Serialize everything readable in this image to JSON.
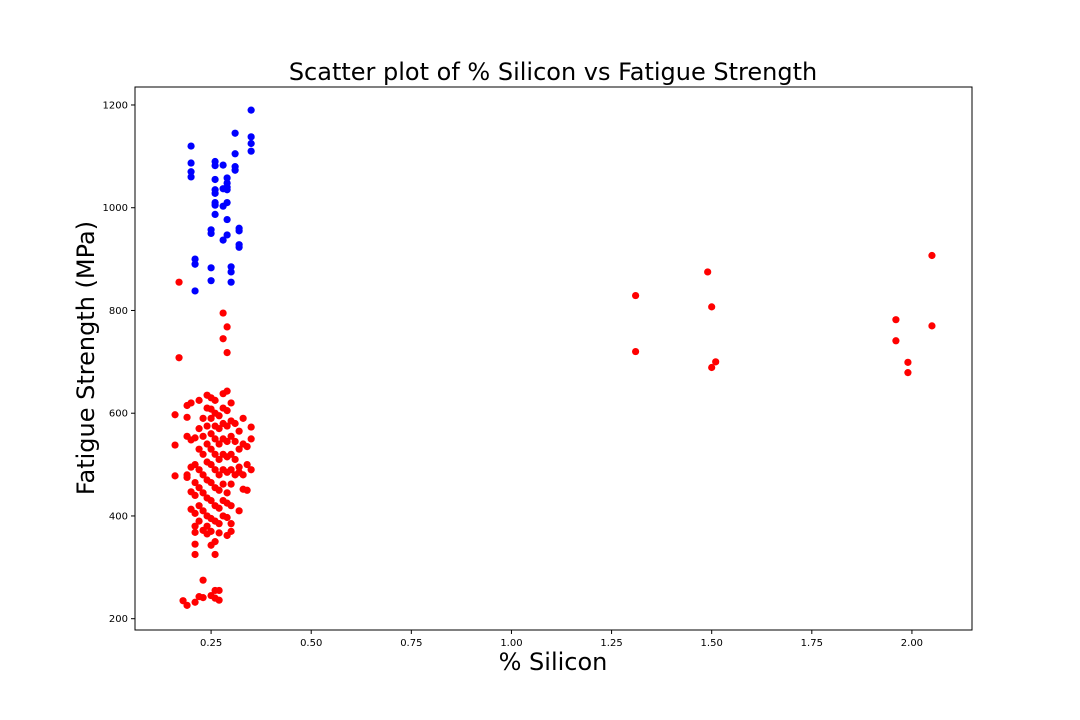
{
  "chart_data": {
    "type": "scatter",
    "title": "Scatter plot of % Silicon vs Fatigue Strength",
    "xlabel": "% Silicon",
    "ylabel": "Fatigue Strength (MPa)",
    "xlim": [
      0.06,
      2.15
    ],
    "ylim": [
      178,
      1235
    ],
    "xticks": [
      0.25,
      0.5,
      0.75,
      1.0,
      1.25,
      1.5,
      1.75,
      2.0
    ],
    "xtick_labels": [
      "0.25",
      "0.50",
      "0.75",
      "1.00",
      "1.25",
      "1.50",
      "1.75",
      "2.00"
    ],
    "yticks": [
      200,
      400,
      600,
      800,
      1000,
      1200
    ],
    "ytick_labels": [
      "200",
      "400",
      "600",
      "800",
      "1000",
      "1200"
    ],
    "grid": false,
    "colors": {
      "high": "#0000ff",
      "low": "#ff0000"
    },
    "series": [
      {
        "color": "#0000ff",
        "points": [
          [
            0.2,
            1120
          ],
          [
            0.2,
            1087
          ],
          [
            0.2,
            1070
          ],
          [
            0.2,
            1060
          ],
          [
            0.21,
            900
          ],
          [
            0.21,
            890
          ],
          [
            0.21,
            838
          ],
          [
            0.25,
            957
          ],
          [
            0.25,
            950
          ],
          [
            0.25,
            883
          ],
          [
            0.25,
            858
          ],
          [
            0.26,
            1090
          ],
          [
            0.26,
            1082
          ],
          [
            0.26,
            1055
          ],
          [
            0.26,
            1035
          ],
          [
            0.26,
            1028
          ],
          [
            0.26,
            1010
          ],
          [
            0.26,
            1005
          ],
          [
            0.26,
            987
          ],
          [
            0.28,
            1083
          ],
          [
            0.28,
            1037
          ],
          [
            0.28,
            1003
          ],
          [
            0.28,
            937
          ],
          [
            0.29,
            1058
          ],
          [
            0.29,
            1048
          ],
          [
            0.29,
            1040
          ],
          [
            0.29,
            1035
          ],
          [
            0.29,
            1010
          ],
          [
            0.29,
            977
          ],
          [
            0.29,
            947
          ],
          [
            0.3,
            885
          ],
          [
            0.3,
            875
          ],
          [
            0.3,
            855
          ],
          [
            0.31,
            1145
          ],
          [
            0.31,
            1105
          ],
          [
            0.31,
            1080
          ],
          [
            0.31,
            1073
          ],
          [
            0.32,
            960
          ],
          [
            0.32,
            955
          ],
          [
            0.32,
            928
          ],
          [
            0.32,
            923
          ],
          [
            0.35,
            1190
          ],
          [
            0.35,
            1138
          ],
          [
            0.35,
            1125
          ],
          [
            0.35,
            1110
          ]
        ]
      },
      {
        "color": "#ff0000",
        "points": [
          [
            0.17,
            855
          ],
          [
            0.17,
            708
          ],
          [
            0.16,
            597
          ],
          [
            0.16,
            538
          ],
          [
            0.16,
            478
          ],
          [
            0.18,
            235
          ],
          [
            0.19,
            226
          ],
          [
            0.19,
            615
          ],
          [
            0.19,
            592
          ],
          [
            0.19,
            555
          ],
          [
            0.19,
            480
          ],
          [
            0.19,
            475
          ],
          [
            0.2,
            620
          ],
          [
            0.2,
            548
          ],
          [
            0.2,
            495
          ],
          [
            0.2,
            447
          ],
          [
            0.2,
            413
          ],
          [
            0.21,
            552
          ],
          [
            0.21,
            500
          ],
          [
            0.21,
            465
          ],
          [
            0.21,
            440
          ],
          [
            0.21,
            405
          ],
          [
            0.21,
            380
          ],
          [
            0.21,
            368
          ],
          [
            0.21,
            345
          ],
          [
            0.21,
            325
          ],
          [
            0.21,
            232
          ],
          [
            0.22,
            625
          ],
          [
            0.22,
            570
          ],
          [
            0.22,
            530
          ],
          [
            0.22,
            490
          ],
          [
            0.22,
            455
          ],
          [
            0.22,
            420
          ],
          [
            0.22,
            390
          ],
          [
            0.22,
            243
          ],
          [
            0.23,
            590
          ],
          [
            0.23,
            555
          ],
          [
            0.23,
            520
          ],
          [
            0.23,
            480
          ],
          [
            0.23,
            445
          ],
          [
            0.23,
            410
          ],
          [
            0.23,
            372
          ],
          [
            0.23,
            275
          ],
          [
            0.23,
            241
          ],
          [
            0.24,
            635
          ],
          [
            0.24,
            610
          ],
          [
            0.24,
            575
          ],
          [
            0.24,
            540
          ],
          [
            0.24,
            505
          ],
          [
            0.24,
            470
          ],
          [
            0.24,
            435
          ],
          [
            0.24,
            400
          ],
          [
            0.24,
            380
          ],
          [
            0.24,
            365
          ],
          [
            0.25,
            630
          ],
          [
            0.25,
            608
          ],
          [
            0.25,
            590
          ],
          [
            0.25,
            560
          ],
          [
            0.25,
            530
          ],
          [
            0.25,
            500
          ],
          [
            0.25,
            465
          ],
          [
            0.25,
            430
          ],
          [
            0.25,
            395
          ],
          [
            0.25,
            370
          ],
          [
            0.25,
            343
          ],
          [
            0.25,
            245
          ],
          [
            0.26,
            625
          ],
          [
            0.26,
            600
          ],
          [
            0.26,
            575
          ],
          [
            0.26,
            550
          ],
          [
            0.26,
            520
          ],
          [
            0.26,
            490
          ],
          [
            0.26,
            455
          ],
          [
            0.26,
            420
          ],
          [
            0.26,
            390
          ],
          [
            0.26,
            350
          ],
          [
            0.26,
            325
          ],
          [
            0.26,
            255
          ],
          [
            0.26,
            240
          ],
          [
            0.27,
            595
          ],
          [
            0.27,
            570
          ],
          [
            0.27,
            540
          ],
          [
            0.27,
            510
          ],
          [
            0.27,
            480
          ],
          [
            0.27,
            450
          ],
          [
            0.27,
            415
          ],
          [
            0.27,
            385
          ],
          [
            0.27,
            367
          ],
          [
            0.27,
            255
          ],
          [
            0.27,
            236
          ],
          [
            0.28,
            795
          ],
          [
            0.28,
            745
          ],
          [
            0.28,
            638
          ],
          [
            0.28,
            610
          ],
          [
            0.28,
            580
          ],
          [
            0.28,
            550
          ],
          [
            0.28,
            520
          ],
          [
            0.28,
            490
          ],
          [
            0.28,
            462
          ],
          [
            0.28,
            430
          ],
          [
            0.28,
            400
          ],
          [
            0.29,
            768
          ],
          [
            0.29,
            718
          ],
          [
            0.29,
            643
          ],
          [
            0.29,
            605
          ],
          [
            0.29,
            575
          ],
          [
            0.29,
            545
          ],
          [
            0.29,
            515
          ],
          [
            0.29,
            485
          ],
          [
            0.29,
            445
          ],
          [
            0.29,
            425
          ],
          [
            0.29,
            397
          ],
          [
            0.29,
            362
          ],
          [
            0.3,
            620
          ],
          [
            0.3,
            585
          ],
          [
            0.3,
            555
          ],
          [
            0.3,
            520
          ],
          [
            0.3,
            490
          ],
          [
            0.3,
            462
          ],
          [
            0.3,
            420
          ],
          [
            0.3,
            385
          ],
          [
            0.3,
            370
          ],
          [
            0.31,
            580
          ],
          [
            0.31,
            545
          ],
          [
            0.31,
            510
          ],
          [
            0.31,
            480
          ],
          [
            0.32,
            565
          ],
          [
            0.32,
            530
          ],
          [
            0.32,
            495
          ],
          [
            0.32,
            485
          ],
          [
            0.32,
            410
          ],
          [
            0.33,
            590
          ],
          [
            0.33,
            540
          ],
          [
            0.33,
            480
          ],
          [
            0.33,
            452
          ],
          [
            0.34,
            535
          ],
          [
            0.34,
            500
          ],
          [
            0.34,
            450
          ],
          [
            0.35,
            573
          ],
          [
            0.35,
            550
          ],
          [
            0.35,
            490
          ],
          [
            1.31,
            829
          ],
          [
            1.31,
            720
          ],
          [
            1.49,
            875
          ],
          [
            1.5,
            807
          ],
          [
            1.5,
            689
          ],
          [
            1.51,
            700
          ],
          [
            1.96,
            782
          ],
          [
            1.96,
            741
          ],
          [
            1.99,
            699
          ],
          [
            1.99,
            679
          ],
          [
            2.05,
            907
          ],
          [
            2.05,
            770
          ]
        ]
      }
    ]
  }
}
